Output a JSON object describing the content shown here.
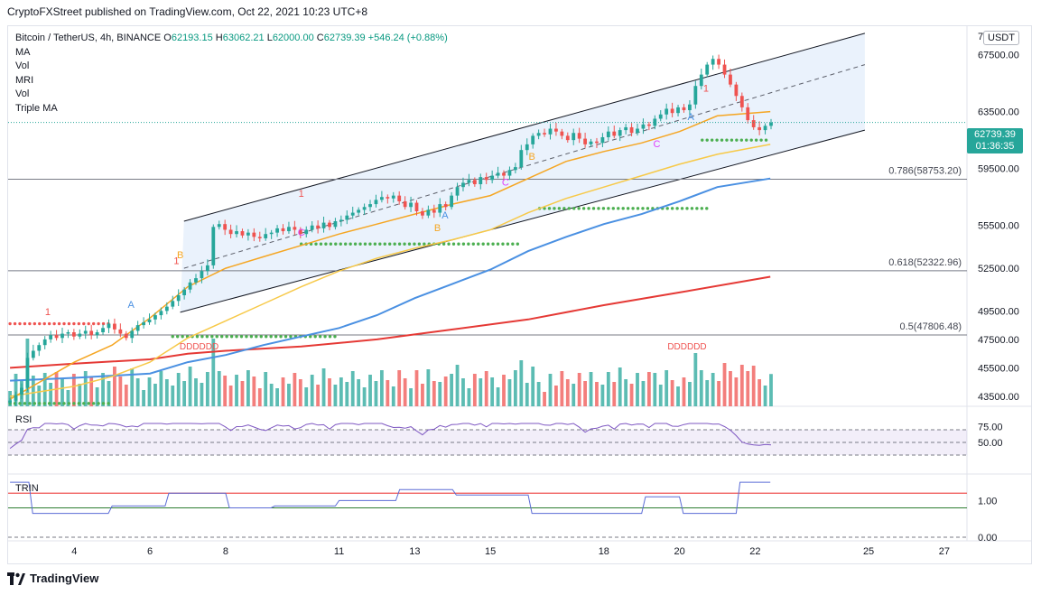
{
  "header": {
    "publisher": "CryptoFXStreet published on TradingView.com, Oct 22, 2021 10:23 UTC+8"
  },
  "legend": {
    "symbol": "Bitcoin / TetherUS, 4h, BINANCE",
    "open_label": "O",
    "open": "62193.15",
    "high_label": "H",
    "high": "63062.21",
    "low_label": "L",
    "low": "62000.00",
    "close_label": "C",
    "close": "62739.39",
    "change": "+546.24 (+0.88%)",
    "studies": [
      "MA",
      "Vol",
      "MRI",
      "Vol",
      "Triple MA"
    ]
  },
  "currency_button": "USDT",
  "current_price": {
    "value": "62739.39",
    "countdown": "01:36:35"
  },
  "fib_labels": [
    "0.786(58753.20)",
    "0.618(52322.96)",
    "0.5(47806.48)"
  ],
  "rsi": {
    "label": "RSI",
    "ticks": [
      "75.00",
      "50.00"
    ]
  },
  "trin": {
    "label": "TRIN",
    "ticks": [
      "1.00",
      "0.00"
    ]
  },
  "markers": {
    "demark": "DDDDDD",
    "one": "1",
    "a": "A",
    "b": "B",
    "c": "C"
  },
  "colors": {
    "up": "#26a69a",
    "down": "#ef5350",
    "ma_blue": "#4a90e2",
    "ma_red": "#e53935",
    "ma_orange": "#f5a623",
    "ma_yellow": "#f7c948",
    "channel_fill": "#e3eefb",
    "dots": "#4caf50",
    "rsi_line": "#7e57c2"
  },
  "footer": {
    "brand": "TradingView"
  },
  "chart_data": {
    "type": "candlestick",
    "title": "Bitcoin / TetherUS, 4h, BINANCE",
    "y_axis": {
      "ticks": [
        "67500.00",
        "63500.00",
        "59500.00",
        "55500.00",
        "52500.00",
        "49500.00",
        "47500.00",
        "45500.00",
        "43500.00"
      ],
      "ylim": [
        42800,
        69500
      ],
      "top_tick_partial": "7"
    },
    "x_axis": {
      "ticks": [
        "4",
        "6",
        "8",
        "11",
        "13",
        "15",
        "18",
        "20",
        "22",
        "25",
        "27"
      ],
      "xlim": [
        2.25,
        27.6
      ]
    },
    "fib_levels": [
      {
        "ratio": 0.786,
        "price": 58753.2
      },
      {
        "ratio": 0.618,
        "price": 52322.96
      },
      {
        "ratio": 0.5,
        "price": 47806.48
      }
    ],
    "channel": {
      "upper": [
        [
          6.9,
          55800
        ],
        [
          24.9,
          69000
        ]
      ],
      "lower": [
        [
          6.8,
          49400
        ],
        [
          24.9,
          62200
        ]
      ],
      "mid": [
        [
          6.9,
          52500
        ],
        [
          24.9,
          66800
        ]
      ]
    },
    "candles_close": [
      43200,
      43600,
      44100,
      46200,
      46700,
      47100,
      47500,
      47800,
      47600,
      47900,
      48000,
      47700,
      47900,
      48100,
      47800,
      48000,
      48300,
      48600,
      48200,
      47900,
      47600,
      48100,
      48500,
      48700,
      48900,
      49200,
      49500,
      49800,
      50200,
      50600,
      51000,
      51500,
      51800,
      52300,
      52700,
      55400,
      55600,
      55200,
      54900,
      55100,
      54800,
      55000,
      54700,
      54600,
      54900,
      55000,
      55300,
      55100,
      55400,
      55200,
      54900,
      55200,
      55500,
      55300,
      55700,
      55400,
      55800,
      55900,
      56200,
      56400,
      56600,
      56800,
      57000,
      57300,
      57500,
      57400,
      57600,
      57200,
      56800,
      57100,
      56500,
      56200,
      56600,
      56400,
      57000,
      56800,
      57600,
      58200,
      58500,
      58700,
      58400,
      58900,
      58700,
      59000,
      59200,
      59000,
      59400,
      59600,
      60800,
      61200,
      61800,
      62000,
      61900,
      62300,
      62100,
      61800,
      61500,
      62000,
      61600,
      61200,
      61400,
      61300,
      61700,
      62100,
      61800,
      62200,
      62400,
      62000,
      62300,
      62600,
      62500,
      63000,
      63300,
      63700,
      63400,
      63800,
      63600,
      64000,
      65300,
      66100,
      66800,
      67200,
      66800,
      66100,
      65400,
      64600,
      63800,
      62900,
      62400,
      62200,
      62500,
      62739
    ],
    "ma_blue": [
      [
        2.3,
        44600
      ],
      [
        4,
        44800
      ],
      [
        6,
        45100
      ],
      [
        7,
        45900
      ],
      [
        8,
        46400
      ],
      [
        9,
        47100
      ],
      [
        10,
        47700
      ],
      [
        11,
        48300
      ],
      [
        12,
        49200
      ],
      [
        13,
        50400
      ],
      [
        14,
        51400
      ],
      [
        15,
        52400
      ],
      [
        16,
        53700
      ],
      [
        17,
        54700
      ],
      [
        18,
        55600
      ],
      [
        19,
        56300
      ],
      [
        20,
        57200
      ],
      [
        21,
        58200
      ],
      [
        22.4,
        58800
      ]
    ],
    "ma_red": [
      [
        2.3,
        45500
      ],
      [
        4,
        45800
      ],
      [
        6,
        46100
      ],
      [
        7,
        46500
      ],
      [
        8,
        46700
      ],
      [
        10,
        47000
      ],
      [
        12,
        47500
      ],
      [
        14,
        48200
      ],
      [
        16,
        48900
      ],
      [
        18,
        49900
      ],
      [
        20,
        50800
      ],
      [
        22.4,
        51900
      ]
    ],
    "ma_orange": [
      [
        2.3,
        43300
      ],
      [
        4,
        45900
      ],
      [
        5,
        47100
      ],
      [
        6,
        49000
      ],
      [
        7,
        51200
      ],
      [
        8,
        52500
      ],
      [
        9,
        53300
      ],
      [
        10,
        54100
      ],
      [
        11,
        54900
      ],
      [
        12,
        55600
      ],
      [
        13,
        56300
      ],
      [
        14,
        57000
      ],
      [
        15,
        57600
      ],
      [
        16,
        58800
      ],
      [
        17,
        60000
      ],
      [
        18,
        60700
      ],
      [
        19,
        61300
      ],
      [
        20,
        62100
      ],
      [
        21,
        63200
      ],
      [
        22.4,
        63500
      ]
    ],
    "ma_yellow": [
      [
        2.3,
        43500
      ],
      [
        4,
        44200
      ],
      [
        5,
        44900
      ],
      [
        6,
        45900
      ],
      [
        7,
        47600
      ],
      [
        8,
        48800
      ],
      [
        9,
        50000
      ],
      [
        10,
        51200
      ],
      [
        11,
        52300
      ],
      [
        12,
        53200
      ],
      [
        13,
        53900
      ],
      [
        14,
        54500
      ],
      [
        15,
        55200
      ],
      [
        16,
        56400
      ],
      [
        17,
        57400
      ],
      [
        18,
        58200
      ],
      [
        19,
        59000
      ],
      [
        20,
        59800
      ],
      [
        21,
        60500
      ],
      [
        22.4,
        61200
      ]
    ],
    "rsi_range": [
      0,
      100
    ],
    "trin_range": [
      -0.1,
      1.6
    ]
  }
}
